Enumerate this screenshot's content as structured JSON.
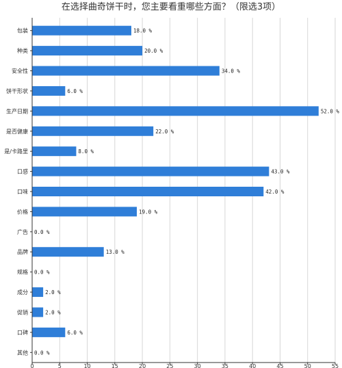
{
  "chart_data": {
    "type": "bar",
    "orientation": "horizontal",
    "title": "在选择曲奇饼干时，您主要看重哪些方面？（限选3项）",
    "categories": [
      "包装",
      "种类",
      "安全性",
      "饼干形状",
      "生产日期",
      "是否健康",
      "是/卡路里",
      "口感",
      "口味",
      "价格",
      "广告",
      "品牌",
      "规格",
      "成分",
      "促销",
      "口碑",
      "其他"
    ],
    "values": [
      18.0,
      20.0,
      34.0,
      6.0,
      52.0,
      22.0,
      8.0,
      43.0,
      42.0,
      19.0,
      0.0,
      13.0,
      0.0,
      2.0,
      2.0,
      6.0,
      0.0
    ],
    "value_labels": [
      "18.0 %",
      "20.0 %",
      "34.0 %",
      "6.0 %",
      "52.0 %",
      "22.0 %",
      "8.0 %",
      "43.0 %",
      "42.0 %",
      "19.0 %",
      "0.0 %",
      "13.0 %",
      "0.0 %",
      "2.0 %",
      "2.0 %",
      "6.0 %",
      "0.0 %"
    ],
    "xlim": [
      0,
      55
    ],
    "xticks": [
      0,
      5,
      10,
      15,
      20,
      25,
      30,
      35,
      40,
      45,
      50,
      55
    ],
    "xlabel": "",
    "ylabel": "",
    "grid": true,
    "bar_color": "#2f7ed8"
  }
}
